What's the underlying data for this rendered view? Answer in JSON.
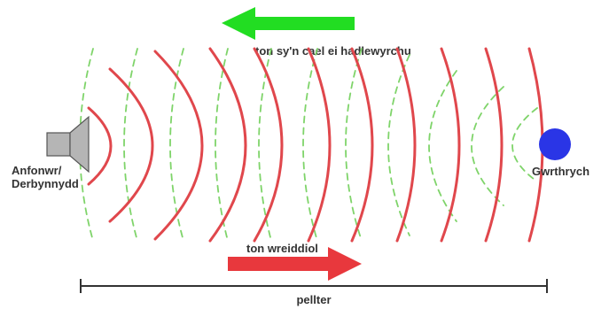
{
  "labels": {
    "reflected_wave": "ton sy'n cael ei hadlewyrchu",
    "original_wave": "ton wreiddiol",
    "distance": "pellter",
    "transceiver_line1": "Anfonwr/",
    "transceiver_line2": "Derbynnydd",
    "object": "Gwrthrych"
  },
  "colors": {
    "original_wave": "#e0474c",
    "reflected_wave": "#7fd46a",
    "reflected_arrow": "#22dd22",
    "original_arrow": "#e8383d",
    "object": "#2a35e6",
    "speaker": "#b5b5b5",
    "distance_line": "#333333"
  },
  "icons": {
    "speaker": "speaker-icon",
    "object": "circle-target-icon"
  }
}
